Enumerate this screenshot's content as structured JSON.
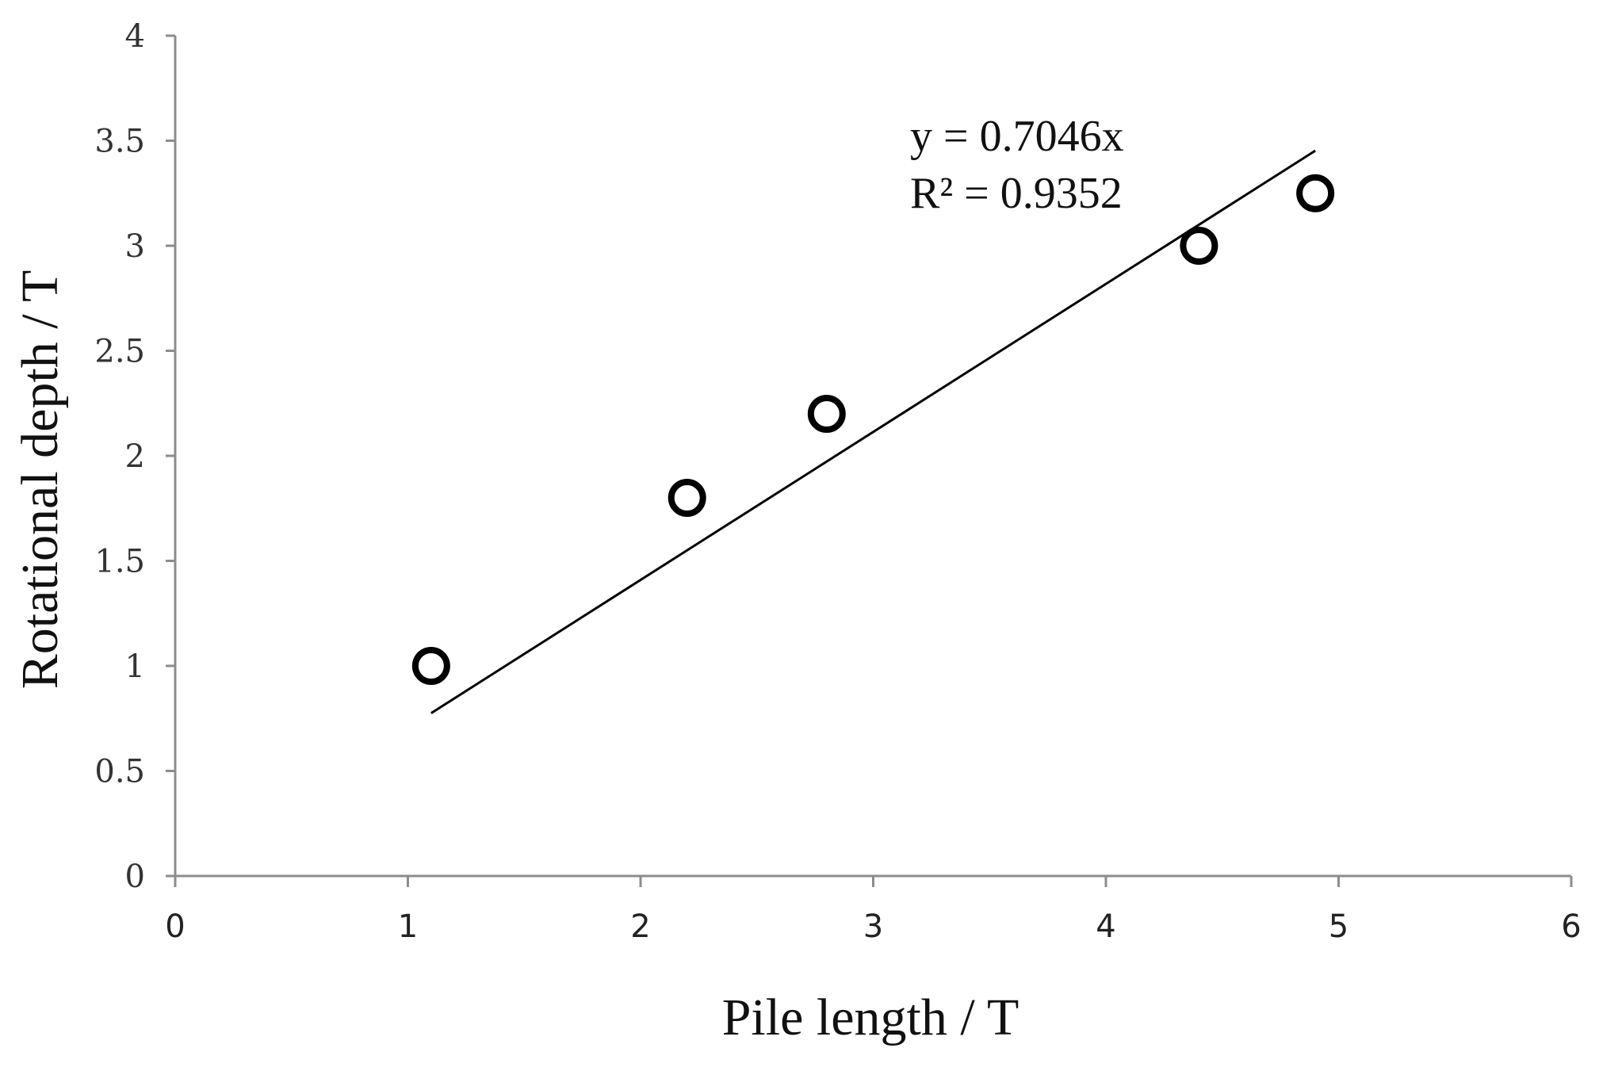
{
  "chart_data": {
    "type": "scatter",
    "xlabel": "Pile length / T",
    "ylabel": "Rotational depth / T",
    "xlim": [
      0,
      6
    ],
    "ylim": [
      0,
      4
    ],
    "x_ticks": [
      "0",
      "1",
      "2",
      "3",
      "4",
      "5",
      "6"
    ],
    "y_ticks": [
      "0",
      "0.5",
      "1",
      "1.5",
      "2",
      "2.5",
      "3",
      "3.5",
      "4"
    ],
    "grid": false,
    "legend": "none",
    "series": [
      {
        "x": [
          1.1,
          2.2,
          2.8,
          4.4,
          4.9
        ],
        "y": [
          1.0,
          1.8,
          2.2,
          3.0,
          3.25
        ],
        "marker": "open-circle",
        "color": "#000000"
      }
    ],
    "trendline": {
      "type": "linear-through-origin",
      "slope": 0.7046,
      "x_range": [
        1.1,
        4.9
      ],
      "equation": "y = 0.7046x",
      "r_squared": "R² = 0.9352"
    }
  }
}
